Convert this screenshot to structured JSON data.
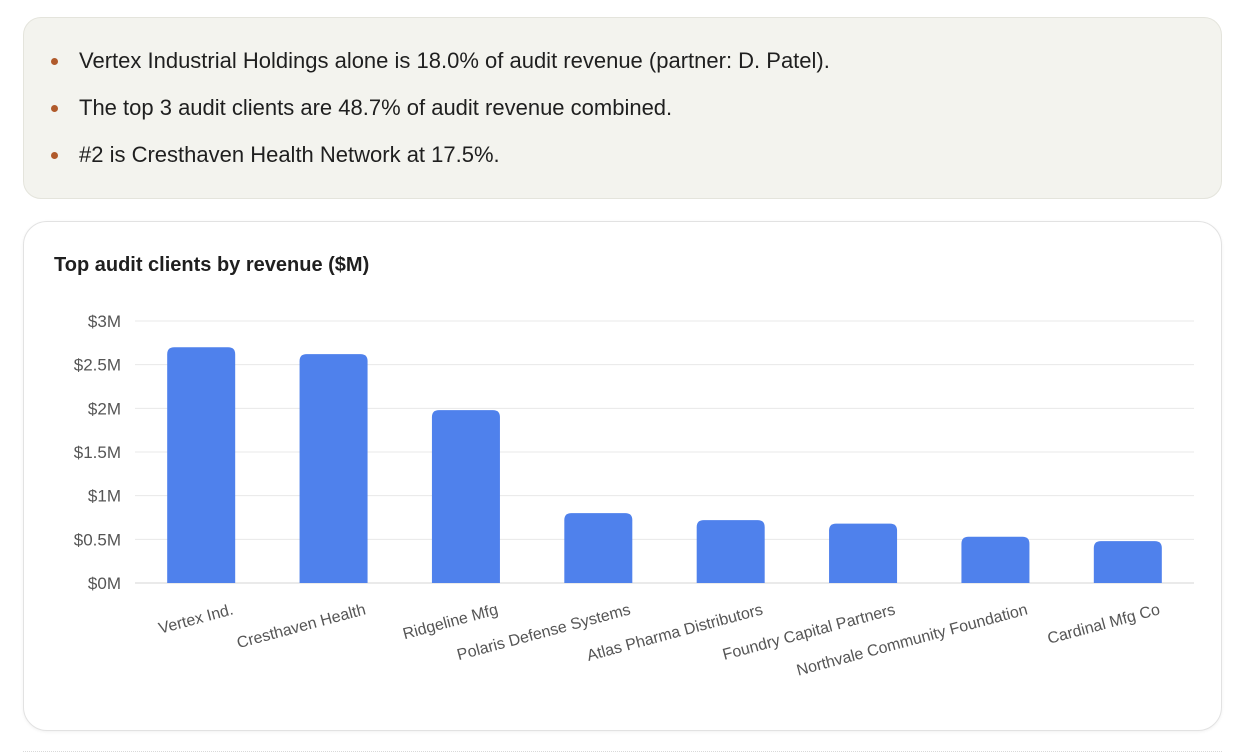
{
  "summary": {
    "bullets": [
      "Vertex Industrial Holdings alone is 18.0% of audit revenue (partner: D. Patel).",
      "The top 3 audit clients are 48.7% of audit revenue combined.",
      "#2 is Cresthaven Health Network at 17.5%."
    ],
    "bullet_color": "#b05a2b"
  },
  "chart_data": {
    "type": "bar",
    "title": "Top audit clients by revenue ($M)",
    "xlabel": "",
    "ylabel": "",
    "categories": [
      "Vertex Ind.",
      "Cresthaven Health",
      "Ridgeline Mfg",
      "Polaris Defense Systems",
      "Atlas Pharma Distributors",
      "Foundry Capital Partners",
      "Northvale Community Foundation",
      "Cardinal Mfg Co"
    ],
    "values": [
      2.7,
      2.62,
      1.98,
      0.8,
      0.72,
      0.68,
      0.53,
      0.48
    ],
    "ylim": [
      0,
      3
    ],
    "yticks": [
      0,
      0.5,
      1,
      1.5,
      2,
      2.5,
      3
    ],
    "ytick_labels": [
      "$0M",
      "$0.5M",
      "$1M",
      "$1.5M",
      "$2M",
      "$2.5M",
      "$3M"
    ],
    "grid": true,
    "legend": "none",
    "bar_color": "#4f81ec"
  }
}
